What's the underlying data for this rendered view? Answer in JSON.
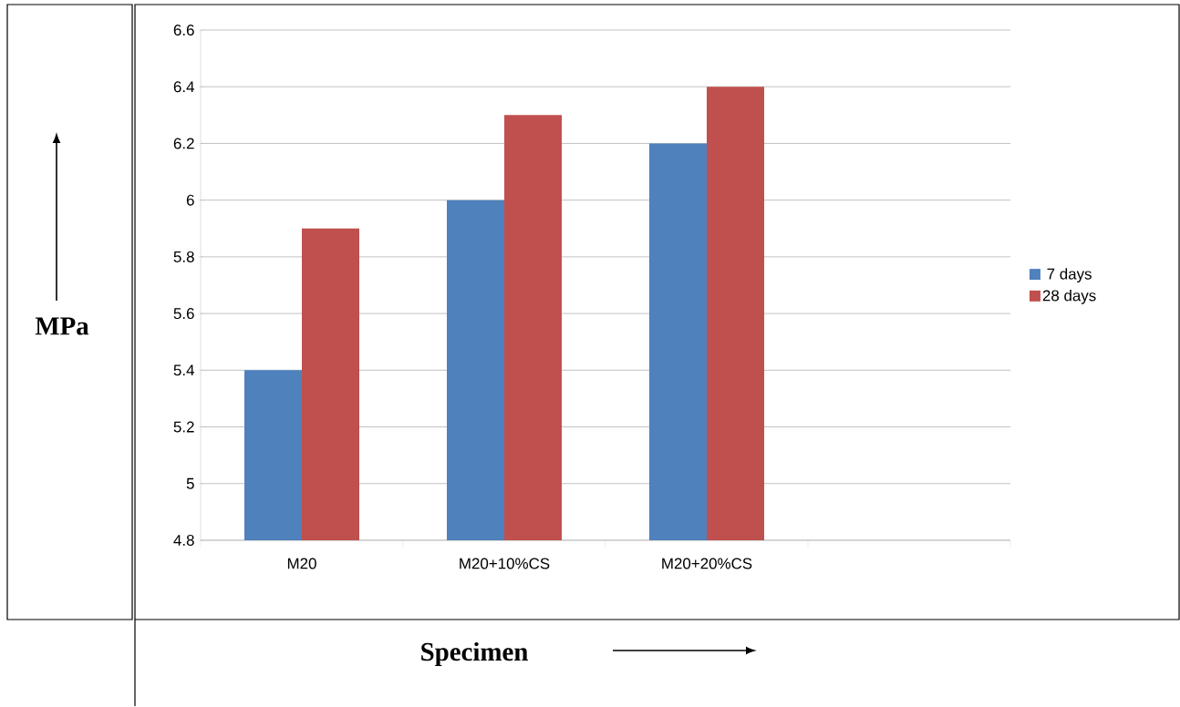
{
  "chart_data": {
    "type": "bar",
    "xlabel": "Specimen",
    "ylabel": "MPa",
    "categories": [
      "M20",
      "M20+10%CS",
      "M20+20%CS",
      null
    ],
    "series": [
      {
        "name": "7 days",
        "color": "#4f81bd",
        "values": [
          5.4,
          6.0,
          6.2,
          null
        ]
      },
      {
        "name": "28 days",
        "color": "#c0504d",
        "values": [
          5.9,
          6.3,
          6.4,
          null
        ]
      }
    ],
    "ylim": [
      4.8,
      6.6
    ],
    "yticks": [
      4.8,
      5,
      5.2,
      5.4,
      5.6,
      5.8,
      6,
      6.2,
      6.4,
      6.6
    ],
    "grid": "y",
    "legend": "right"
  }
}
